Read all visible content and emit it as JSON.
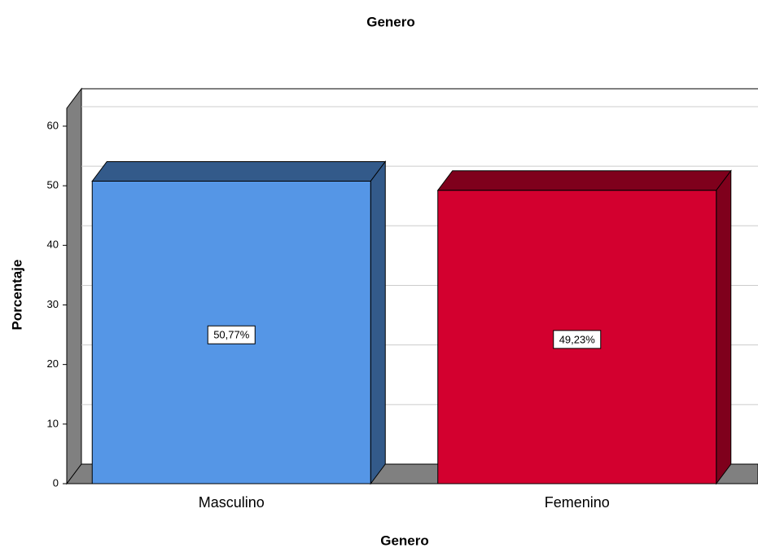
{
  "chart_data": {
    "type": "bar3d",
    "title": "Genero",
    "x_label": "Genero",
    "y_label": "Porcentaje",
    "categories": [
      "Masculino",
      "Femenino"
    ],
    "values": [
      50.77,
      49.23
    ],
    "value_labels": [
      "50,77%",
      "49,23%"
    ],
    "colors": [
      "#5596e6",
      "#d3002f"
    ],
    "ylim": [
      0,
      63
    ],
    "yticks": [
      0,
      10,
      20,
      30,
      40,
      50,
      60
    ],
    "grid": true
  }
}
